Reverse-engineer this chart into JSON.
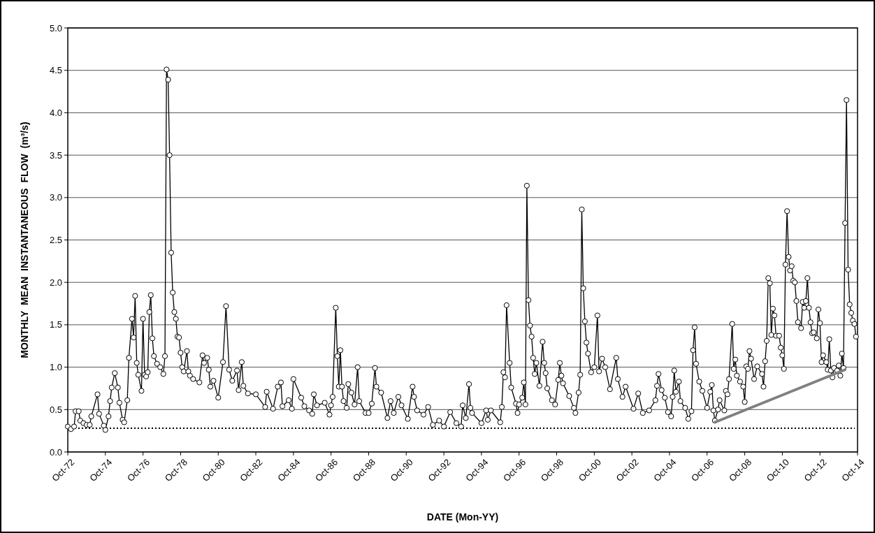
{
  "chart_data": {
    "type": "line",
    "xlabel": "DATE (Mon-YY)",
    "ylabel": "MONTHLY MEAN INSTANTANEOUS FLOW (m³/s)",
    "ylim": [
      0,
      5
    ],
    "yticks": [
      {
        "value": 0,
        "label": "0.0"
      },
      {
        "value": 0.5,
        "label": "0.5"
      },
      {
        "value": 1,
        "label": "1.0"
      },
      {
        "value": 1.5,
        "label": "1.5"
      },
      {
        "value": 2,
        "label": "2.0"
      },
      {
        "value": 2.5,
        "label": "2.5"
      },
      {
        "value": 3,
        "label": "3.0"
      },
      {
        "value": 3.5,
        "label": "3.5"
      },
      {
        "value": 4,
        "label": "4.0"
      },
      {
        "value": 4.5,
        "label": "4.5"
      },
      {
        "value": 5,
        "label": "5.0"
      }
    ],
    "xlim": [
      "1972-10",
      "2014-10"
    ],
    "xticks": [
      {
        "value": "1972-10",
        "label": "Oct-72"
      },
      {
        "value": "1974-10",
        "label": "Oct-74"
      },
      {
        "value": "1976-10",
        "label": "Oct-76"
      },
      {
        "value": "1978-10",
        "label": "Oct-78"
      },
      {
        "value": "1980-10",
        "label": "Oct-80"
      },
      {
        "value": "1982-10",
        "label": "Oct-82"
      },
      {
        "value": "1984-10",
        "label": "Oct-84"
      },
      {
        "value": "1986-10",
        "label": "Oct-86"
      },
      {
        "value": "1988-10",
        "label": "Oct-88"
      },
      {
        "value": "1990-10",
        "label": "Oct-90"
      },
      {
        "value": "1992-10",
        "label": "Oct-92"
      },
      {
        "value": "1994-10",
        "label": "Oct-94"
      },
      {
        "value": "1996-10",
        "label": "Oct-96"
      },
      {
        "value": "1998-10",
        "label": "Oct-98"
      },
      {
        "value": "2000-10",
        "label": "Oct-00"
      },
      {
        "value": "2002-10",
        "label": "Oct-02"
      },
      {
        "value": "2004-10",
        "label": "Oct-04"
      },
      {
        "value": "2006-10",
        "label": "Oct-06"
      },
      {
        "value": "2008-10",
        "label": "Oct-08"
      },
      {
        "value": "2010-10",
        "label": "Oct-10"
      },
      {
        "value": "2012-10",
        "label": "Oct-12"
      },
      {
        "value": "2014-10",
        "label": "Oct-14"
      }
    ],
    "grid": "y",
    "marker": "circle",
    "line_style": "solid",
    "ref_lines": [
      {
        "axis": "y",
        "value": 0.28,
        "color": "#000000",
        "line_style": "dotted"
      }
    ],
    "series": [
      {
        "color": "#000000",
        "x": [
          "1972-10",
          "1972-12",
          "1973-02",
          "1973-03",
          "1973-05",
          "1973-06",
          "1973-08",
          "1973-10",
          "1973-12",
          "1974-01",
          "1974-05",
          "1974-06",
          "1974-09",
          "1974-10",
          "1974-12",
          "1975-01",
          "1975-02",
          "1975-04",
          "1975-06",
          "1975-07",
          "1975-09",
          "1975-10",
          "1975-12",
          "1976-01",
          "1976-03",
          "1976-04",
          "1976-05",
          "1976-06",
          "1976-07",
          "1976-09",
          "1976-10",
          "1976-11",
          "1976-12",
          "1977-01",
          "1977-02",
          "1977-03",
          "1977-04",
          "1977-05",
          "1977-07",
          "1977-09",
          "1977-11",
          "1977-12",
          "1978-01",
          "1978-02",
          "1978-03",
          "1978-04",
          "1978-05",
          "1978-06",
          "1978-07",
          "1978-08",
          "1978-09",
          "1978-10",
          "1978-11",
          "1978-12",
          "1979-02",
          "1979-03",
          "1979-04",
          "1979-06",
          "1979-10",
          "1979-12",
          "1980-01",
          "1980-03",
          "1980-04",
          "1980-05",
          "1980-07",
          "1980-10",
          "1981-01",
          "1981-03",
          "1981-05",
          "1981-07",
          "1981-10",
          "1981-11",
          "1982-01",
          "1982-02",
          "1982-05",
          "1982-10",
          "1983-04",
          "1983-05",
          "1983-09",
          "1983-12",
          "1984-02",
          "1984-03",
          "1984-07",
          "1984-09",
          "1984-10",
          "1985-03",
          "1985-05",
          "1985-08",
          "1985-10",
          "1985-11",
          "1986-01",
          "1986-06",
          "1986-09",
          "1986-10",
          "1986-11",
          "1987-01",
          "1987-02",
          "1987-03",
          "1987-04",
          "1987-05",
          "1987-06",
          "1987-08",
          "1987-09",
          "1987-11",
          "1988-01",
          "1988-03",
          "1988-04",
          "1988-08",
          "1988-10",
          "1988-12",
          "1989-02",
          "1989-03",
          "1989-06",
          "1989-10",
          "1989-12",
          "1990-02",
          "1990-05",
          "1990-07",
          "1990-11",
          "1991-02",
          "1991-03",
          "1991-05",
          "1991-09",
          "1991-12",
          "1992-03",
          "1992-07",
          "1992-10",
          "1993-02",
          "1993-06",
          "1993-09",
          "1993-10",
          "1993-12",
          "1994-02",
          "1994-03",
          "1994-04",
          "1994-10",
          "1995-01",
          "1995-02",
          "1995-04",
          "1995-10",
          "1995-11",
          "1995-12",
          "1996-01",
          "1996-02",
          "1996-04",
          "1996-05",
          "1996-08",
          "1996-09",
          "1996-10",
          "1996-12",
          "1997-01",
          "1997-02",
          "1997-03",
          "1997-04",
          "1997-05",
          "1997-06",
          "1997-07",
          "1997-08",
          "1997-09",
          "1997-11",
          "1998-01",
          "1998-02",
          "1998-03",
          "1998-04",
          "1998-07",
          "1998-09",
          "1998-11",
          "1998-12",
          "1999-01",
          "1999-02",
          "1999-06",
          "1999-09",
          "1999-10",
          "1999-12",
          "2000-01",
          "2000-02",
          "2000-03",
          "2000-04",
          "2000-05",
          "2000-06",
          "2000-08",
          "2000-10",
          "2000-12",
          "2001-01",
          "2001-03",
          "2001-05",
          "2001-08",
          "2001-12",
          "2002-01",
          "2002-04",
          "2002-06",
          "2002-11",
          "2003-02",
          "2003-05",
          "2003-09",
          "2004-01",
          "2004-02",
          "2004-03",
          "2004-05",
          "2004-07",
          "2004-09",
          "2004-11",
          "2004-12",
          "2005-01",
          "2005-02",
          "2005-04",
          "2005-05",
          "2005-08",
          "2005-10",
          "2005-12",
          "2006-01",
          "2006-02",
          "2006-03",
          "2006-05",
          "2006-07",
          "2006-10",
          "2006-12",
          "2007-01",
          "2007-02",
          "2007-03",
          "2007-05",
          "2007-06",
          "2007-09",
          "2007-10",
          "2007-11",
          "2007-12",
          "2008-02",
          "2008-03",
          "2008-04",
          "2008-05",
          "2008-07",
          "2008-09",
          "2008-10",
          "2008-11",
          "2008-12",
          "2009-01",
          "2009-02",
          "2009-04",
          "2009-06",
          "2009-09",
          "2009-10",
          "2009-11",
          "2009-12",
          "2010-01",
          "2010-02",
          "2010-03",
          "2010-04",
          "2010-05",
          "2010-06",
          "2010-08",
          "2010-09",
          "2010-10",
          "2010-11",
          "2010-12",
          "2011-01",
          "2011-02",
          "2011-03",
          "2011-04",
          "2011-05",
          "2011-06",
          "2011-07",
          "2011-08",
          "2011-10",
          "2011-11",
          "2011-12",
          "2012-01",
          "2012-02",
          "2012-03",
          "2012-04",
          "2012-05",
          "2012-06",
          "2012-08",
          "2012-09",
          "2012-10",
          "2012-11",
          "2012-12",
          "2013-02",
          "2013-03",
          "2013-04",
          "2013-05",
          "2013-06",
          "2013-07",
          "2013-09",
          "2013-10",
          "2013-11",
          "2013-12",
          "2014-01",
          "2014-02",
          "2014-03",
          "2014-04",
          "2014-05",
          "2014-06",
          "2014-07",
          "2014-08",
          "2014-09"
        ],
        "values": [
          0.3,
          0.27,
          0.3,
          0.48,
          0.48,
          0.37,
          0.34,
          0.32,
          0.32,
          0.42,
          0.68,
          0.45,
          0.31,
          0.26,
          0.42,
          0.6,
          0.76,
          0.93,
          0.76,
          0.58,
          0.38,
          0.35,
          0.61,
          1.11,
          1.57,
          1.35,
          1.84,
          1.05,
          0.91,
          0.72,
          1.57,
          0.91,
          0.89,
          0.94,
          1.65,
          1.85,
          1.34,
          1.13,
          1.04,
          1.0,
          0.92,
          1.13,
          4.51,
          4.39,
          3.5,
          2.35,
          1.88,
          1.65,
          1.57,
          1.36,
          1.35,
          1.17,
          1.0,
          0.95,
          1.19,
          0.95,
          0.9,
          0.86,
          0.82,
          1.14,
          1.05,
          1.11,
          0.97,
          0.77,
          0.84,
          0.64,
          1.06,
          1.72,
          0.97,
          0.84,
          0.96,
          0.73,
          1.06,
          0.78,
          0.69,
          0.68,
          0.53,
          0.71,
          0.51,
          0.77,
          0.82,
          0.54,
          0.61,
          0.51,
          0.86,
          0.64,
          0.54,
          0.49,
          0.45,
          0.68,
          0.55,
          0.58,
          0.44,
          0.55,
          0.65,
          1.7,
          1.13,
          0.77,
          1.2,
          0.77,
          0.6,
          0.52,
          0.8,
          0.7,
          0.56,
          1.0,
          0.6,
          0.46,
          0.46,
          0.57,
          0.99,
          0.77,
          0.7,
          0.4,
          0.6,
          0.46,
          0.65,
          0.55,
          0.39,
          0.77,
          0.65,
          0.49,
          0.44,
          0.53,
          0.32,
          0.37,
          0.3,
          0.47,
          0.34,
          0.3,
          0.55,
          0.4,
          0.8,
          0.52,
          0.46,
          0.34,
          0.49,
          0.38,
          0.49,
          0.35,
          0.53,
          0.94,
          0.88,
          1.73,
          1.05,
          0.76,
          0.57,
          0.46,
          0.56,
          0.64,
          0.82,
          0.56,
          3.14,
          1.79,
          1.49,
          1.36,
          1.11,
          0.92,
          1.05,
          0.78,
          1.3,
          1.05,
          0.93,
          0.75,
          0.61,
          0.56,
          0.85,
          1.05,
          0.9,
          0.81,
          0.66,
          0.52,
          0.46,
          0.7,
          0.91,
          2.86,
          1.93,
          1.54,
          1.29,
          1.16,
          0.94,
          1.0,
          1.61,
          0.95,
          1.1,
          1.0,
          0.74,
          1.11,
          0.86,
          0.65,
          0.77,
          0.51,
          0.69,
          0.46,
          0.49,
          0.61,
          0.78,
          0.92,
          0.73,
          0.64,
          0.47,
          0.42,
          0.65,
          0.96,
          0.71,
          0.83,
          0.6,
          0.52,
          0.39,
          0.48,
          1.2,
          1.47,
          1.04,
          0.83,
          0.72,
          0.52,
          0.71,
          0.79,
          0.49,
          0.37,
          0.5,
          0.61,
          0.49,
          0.72,
          0.68,
          0.86,
          1.51,
          0.98,
          1.09,
          0.9,
          0.83,
          0.77,
          0.59,
          1.01,
          0.98,
          1.19,
          1.1,
          0.86,
          1.01,
          0.92,
          0.77,
          1.07,
          1.31,
          2.05,
          1.99,
          1.38,
          1.69,
          1.61,
          1.37,
          1.37,
          1.23,
          1.14,
          0.98,
          2.21,
          2.84,
          2.3,
          2.14,
          2.19,
          2.02,
          2.0,
          1.78,
          1.53,
          1.46,
          1.77,
          1.7,
          1.78,
          2.05,
          1.7,
          1.53,
          1.4,
          1.41,
          1.34,
          1.68,
          1.52,
          1.06,
          1.14,
          1.06,
          0.97,
          1.33,
          0.96,
          0.88,
          0.99,
          0.96,
          1.02,
          0.9,
          1.16,
          0.99,
          2.7,
          4.15,
          2.15,
          1.74,
          1.64,
          1.55,
          1.51,
          1.36
        ]
      },
      {
        "type": "line",
        "color": "#808080",
        "marker": "none",
        "x": [
          "2007-03",
          "2014-02"
        ],
        "values": [
          0.35,
          0.97
        ]
      }
    ]
  }
}
